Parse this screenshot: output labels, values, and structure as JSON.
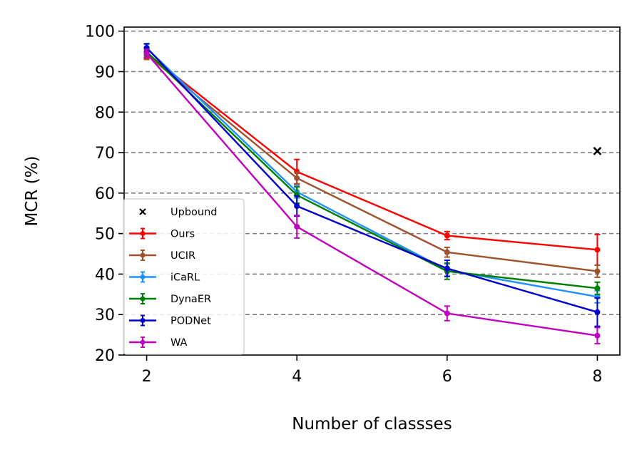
{
  "chart_data": {
    "type": "line",
    "xlabel": "Number of classses",
    "ylabel": "MCR (%)",
    "x": [
      2,
      4,
      6,
      8
    ],
    "xticks": [
      "2",
      "4",
      "6",
      "8"
    ],
    "xlim": [
      1.7,
      8.3
    ],
    "ylim": [
      20,
      101
    ],
    "yticks": [
      "20",
      "30",
      "40",
      "50",
      "60",
      "70",
      "80",
      "90",
      "100"
    ],
    "grid": "horizontal-dashed",
    "legend_position": "lower-left",
    "upbound": {
      "name": "Upbound",
      "x": 8,
      "y": 70.4,
      "color": "#000000"
    },
    "series": [
      {
        "name": "Ours",
        "color": "#ff0000",
        "values": [
          94.6,
          65.3,
          49.5,
          46.0
        ],
        "errors": [
          1.4,
          3.0,
          1.0,
          3.8
        ]
      },
      {
        "name": "UCIR",
        "color": "#a0522d",
        "values": [
          94.2,
          63.7,
          45.4,
          40.7
        ],
        "errors": [
          1.2,
          1.5,
          1.2,
          1.5
        ]
      },
      {
        "name": "iCaRL",
        "color": "#1e90ff",
        "values": [
          95.8,
          60.3,
          41.0,
          34.4
        ],
        "errors": [
          1.0,
          1.5,
          1.5,
          1.5
        ]
      },
      {
        "name": "DynaER",
        "color": "#008000",
        "values": [
          94.9,
          59.5,
          40.7,
          36.5
        ],
        "errors": [
          1.0,
          2.0,
          2.0,
          1.5
        ]
      },
      {
        "name": "PODNet",
        "color": "#0000cd",
        "values": [
          95.9,
          56.8,
          41.4,
          30.6
        ],
        "errors": [
          1.0,
          2.5,
          2.0,
          3.5
        ]
      },
      {
        "name": "WA",
        "color": "#bf00bf",
        "values": [
          94.5,
          51.7,
          30.3,
          24.8
        ],
        "errors": [
          1.0,
          2.8,
          1.8,
          2.0
        ]
      }
    ]
  }
}
